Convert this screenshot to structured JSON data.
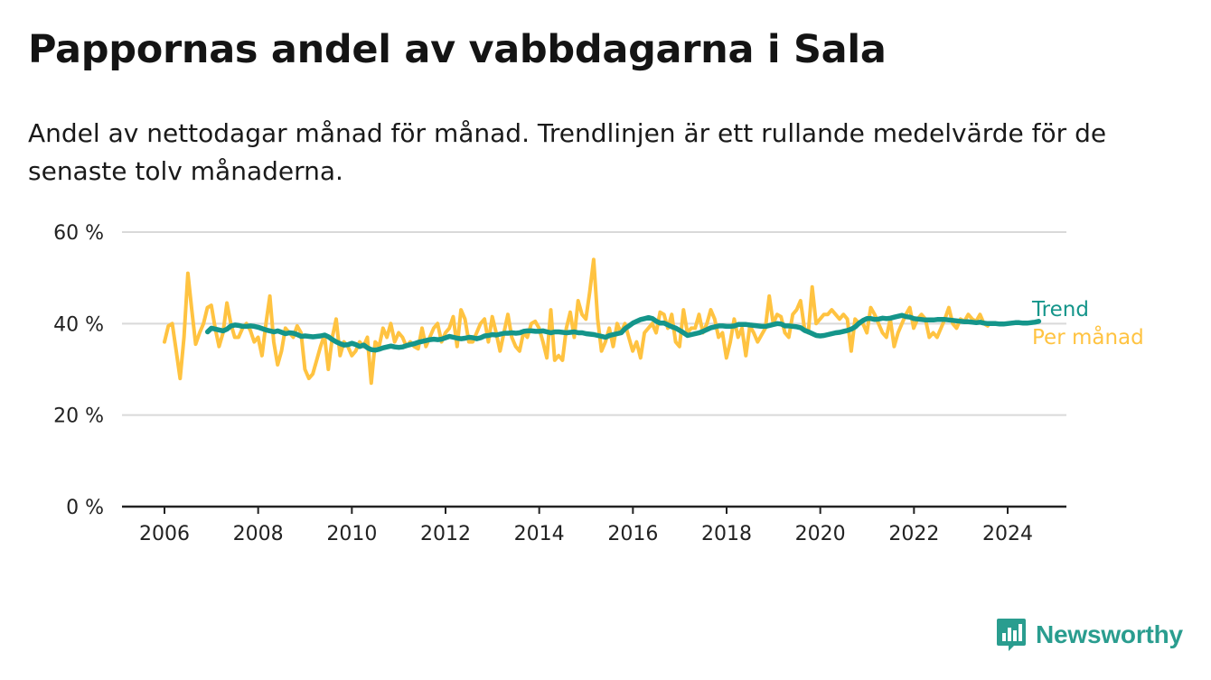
{
  "title": "Pappornas andel av vabbdagarna i Sala",
  "subtitle": "Andel av nettodagar månad för månad. Trendlinjen är ett rullande medelvärde för de senaste tolv månaderna.",
  "brand": "Newsworthy",
  "colors": {
    "trend": "#14958a",
    "monthly": "#ffc341",
    "grid": "#d9d9d9",
    "axis": "#222222",
    "brand": "#2a9d8f"
  },
  "chart_data": {
    "type": "line",
    "x_unit": "year",
    "ylim": [
      0,
      60
    ],
    "xlim": [
      2005.4,
      2025.3
    ],
    "y_ticks": [
      {
        "value": 0,
        "label": "0 %"
      },
      {
        "value": 20,
        "label": "20 %"
      },
      {
        "value": 40,
        "label": "40 %"
      },
      {
        "value": 60,
        "label": "60 %"
      }
    ],
    "x_ticks": [
      {
        "value": 2006,
        "label": "2006"
      },
      {
        "value": 2008,
        "label": "2008"
      },
      {
        "value": 2010,
        "label": "2010"
      },
      {
        "value": 2012,
        "label": "2012"
      },
      {
        "value": 2014,
        "label": "2014"
      },
      {
        "value": 2016,
        "label": "2016"
      },
      {
        "value": 2018,
        "label": "2018"
      },
      {
        "value": 2020,
        "label": "2020"
      },
      {
        "value": 2022,
        "label": "2022"
      },
      {
        "value": 2024,
        "label": "2024"
      }
    ],
    "series": [
      {
        "name": "Per månad",
        "color": "#ffc341",
        "x_start": 2006.0,
        "x_step": 0.0833,
        "values": [
          36,
          39.5,
          40,
          34,
          28,
          37,
          51,
          43,
          35.5,
          38,
          40,
          43.5,
          44,
          39,
          35,
          38,
          44.5,
          40,
          37,
          37,
          39,
          40,
          38.5,
          36,
          37,
          33,
          40,
          46,
          36,
          31,
          34,
          39,
          38,
          37,
          39.5,
          38,
          30,
          28,
          29,
          32,
          35,
          37.5,
          30,
          37,
          41,
          33,
          36,
          35,
          33,
          34,
          36,
          35,
          37,
          27,
          36,
          35,
          39,
          37,
          40,
          36,
          38,
          37,
          35,
          36,
          35,
          34.5,
          39,
          35,
          37,
          39,
          40,
          36,
          38,
          39,
          41.5,
          35,
          43,
          41,
          36,
          36,
          38,
          40,
          41,
          36,
          41.5,
          38,
          34,
          38,
          42,
          37,
          35,
          34,
          38,
          37,
          40,
          40.5,
          39,
          36,
          32.5,
          43,
          32,
          33,
          32,
          39,
          42.5,
          37,
          45,
          42,
          41,
          47,
          54,
          41,
          34,
          36,
          39,
          35,
          40,
          38,
          40,
          37,
          34,
          36,
          32.5,
          38,
          39,
          40,
          38,
          42.5,
          42,
          39,
          42,
          36,
          35,
          43,
          38,
          39,
          39,
          42,
          38,
          40,
          43,
          41,
          37,
          38,
          32.5,
          36,
          41,
          37,
          39,
          33,
          39.5,
          38,
          36,
          37.5,
          39,
          46,
          40,
          42,
          41.5,
          38,
          37,
          42,
          43,
          45,
          39,
          38,
          48,
          40,
          41,
          42,
          42,
          43,
          42,
          41,
          42,
          41,
          34,
          41,
          40,
          40,
          38,
          43.5,
          42,
          40,
          38,
          37,
          41,
          35,
          38,
          40,
          42,
          43.5,
          39,
          41,
          42,
          41,
          37,
          38,
          37,
          39,
          41,
          43.5,
          40,
          39,
          41,
          40.5,
          42,
          41,
          40.5,
          42,
          40,
          39.5
        ]
      },
      {
        "name": "Trend",
        "color": "#14958a",
        "x_start": 2006.92,
        "x_step": 0.0833,
        "values": [
          38.2,
          39,
          38.8,
          38.6,
          38.4,
          38.8,
          39.5,
          39.7,
          39.6,
          39.4,
          39.4,
          39.5,
          39.4,
          39.2,
          38.9,
          38.6,
          38.4,
          38.2,
          38.4,
          38.1,
          37.8,
          38,
          37.9,
          37.6,
          37.2,
          37.3,
          37.2,
          37.1,
          37.2,
          37.3,
          37.5,
          37.1,
          36.5,
          36,
          35.6,
          35.3,
          35.4,
          35.7,
          35.4,
          35,
          35.3,
          34.7,
          34.3,
          34.2,
          34.4,
          34.7,
          34.9,
          35.1,
          34.9,
          34.8,
          34.9,
          35.2,
          35.4,
          35.6,
          35.9,
          36.1,
          36.3,
          36.5,
          36.6,
          36.5,
          36.6,
          36.9,
          37.2,
          37,
          36.8,
          36.7,
          36.8,
          37,
          36.9,
          36.7,
          36.9,
          37.3,
          37.4,
          37.6,
          37.5,
          37.7,
          37.9,
          37.9,
          38,
          37.9,
          38,
          38.3,
          38.4,
          38.4,
          38.3,
          38.3,
          38.4,
          38.2,
          38,
          38.2,
          38.2,
          38.1,
          38,
          38.1,
          38.2,
          38,
          38,
          37.8,
          37.7,
          37.6,
          37.4,
          37.2,
          37,
          37.4,
          37.6,
          37.8,
          38,
          38.9,
          39.5,
          40.1,
          40.5,
          40.9,
          41.1,
          41.3,
          41.1,
          40.5,
          40.1,
          40.1,
          39.7,
          39.3,
          39,
          38.5,
          38,
          37.4,
          37.6,
          37.8,
          38,
          38.3,
          38.7,
          39.1,
          39.3,
          39.5,
          39.5,
          39.4,
          39.4,
          39.5,
          39.8,
          39.8,
          39.8,
          39.7,
          39.6,
          39.5,
          39.4,
          39.4,
          39.6,
          39.8,
          40,
          39.9,
          39.5,
          39.5,
          39.4,
          39.3,
          39.1,
          38.5,
          38.2,
          37.8,
          37.4,
          37.3,
          37.4,
          37.6,
          37.8,
          38,
          38.1,
          38.3,
          38.5,
          38.8,
          39.3,
          40.1,
          40.7,
          41.1,
          41.1,
          40.9,
          41,
          41.2,
          41.1,
          41.2,
          41.4,
          41.6,
          41.8,
          41.5,
          41.4,
          41.1,
          41,
          40.9,
          40.8,
          40.8,
          40.8,
          40.9,
          40.9,
          40.9,
          40.8,
          40.7,
          40.6,
          40.5,
          40.4,
          40.4,
          40.3,
          40.2,
          40.3,
          40.1,
          40,
          40,
          40,
          39.9,
          39.9,
          40,
          40.1,
          40.2,
          40.2,
          40.1,
          40.1,
          40.2,
          40.3,
          40.5
        ]
      }
    ]
  }
}
